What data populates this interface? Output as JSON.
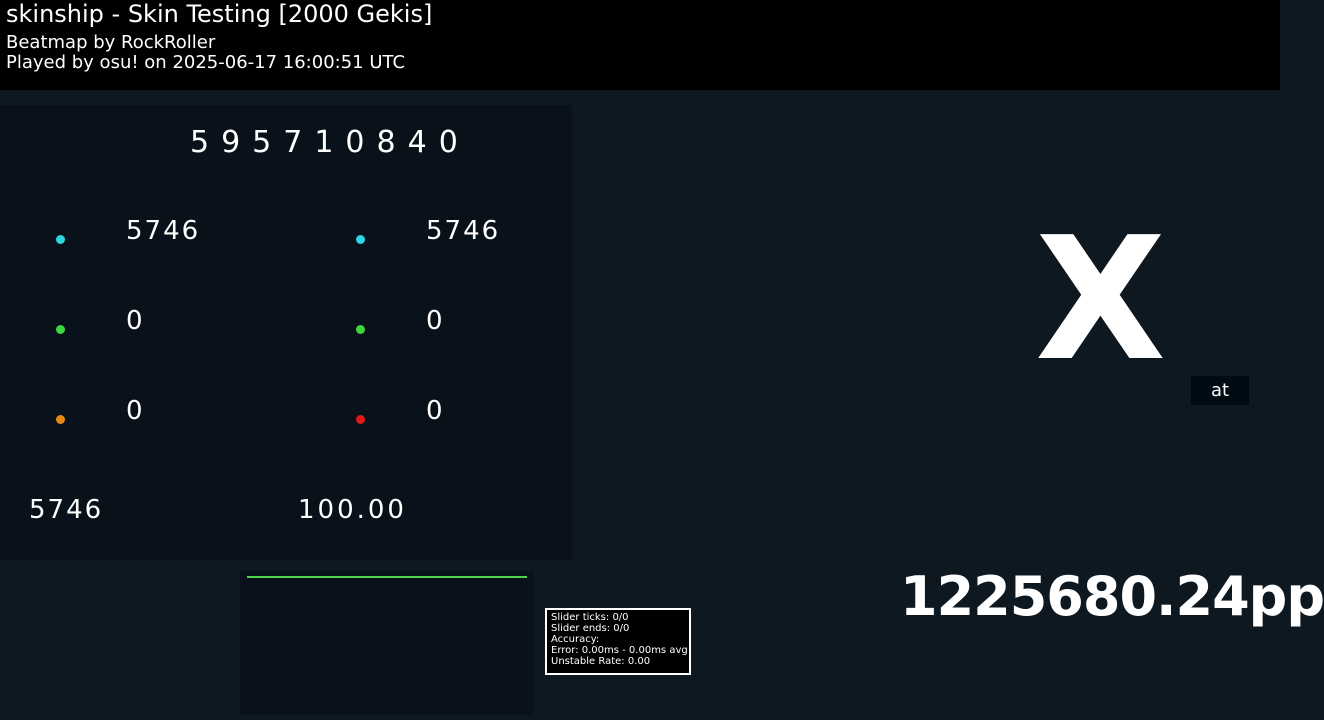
{
  "header": {
    "title": "skinship - Skin Testing [2000 Gekis]",
    "beatmap": "Beatmap by RockRoller",
    "played": "Played by osu! on 2025-06-17 16:00:51 UTC"
  },
  "score": "595710840",
  "hits": {
    "left": [
      "5746",
      "0",
      "0"
    ],
    "right": [
      "5746",
      "0",
      "0"
    ]
  },
  "combo": "5746",
  "accuracy": "100.00",
  "rank": "X",
  "rank_badge": "at",
  "pp": "1225680.24pp",
  "stats": [
    "Slider ticks: 0/0",
    "Slider ends: 0/0",
    "Accuracy:",
    "Error: 0.00ms - 0.00ms avg",
    "Unstable Rate: 0.00"
  ]
}
